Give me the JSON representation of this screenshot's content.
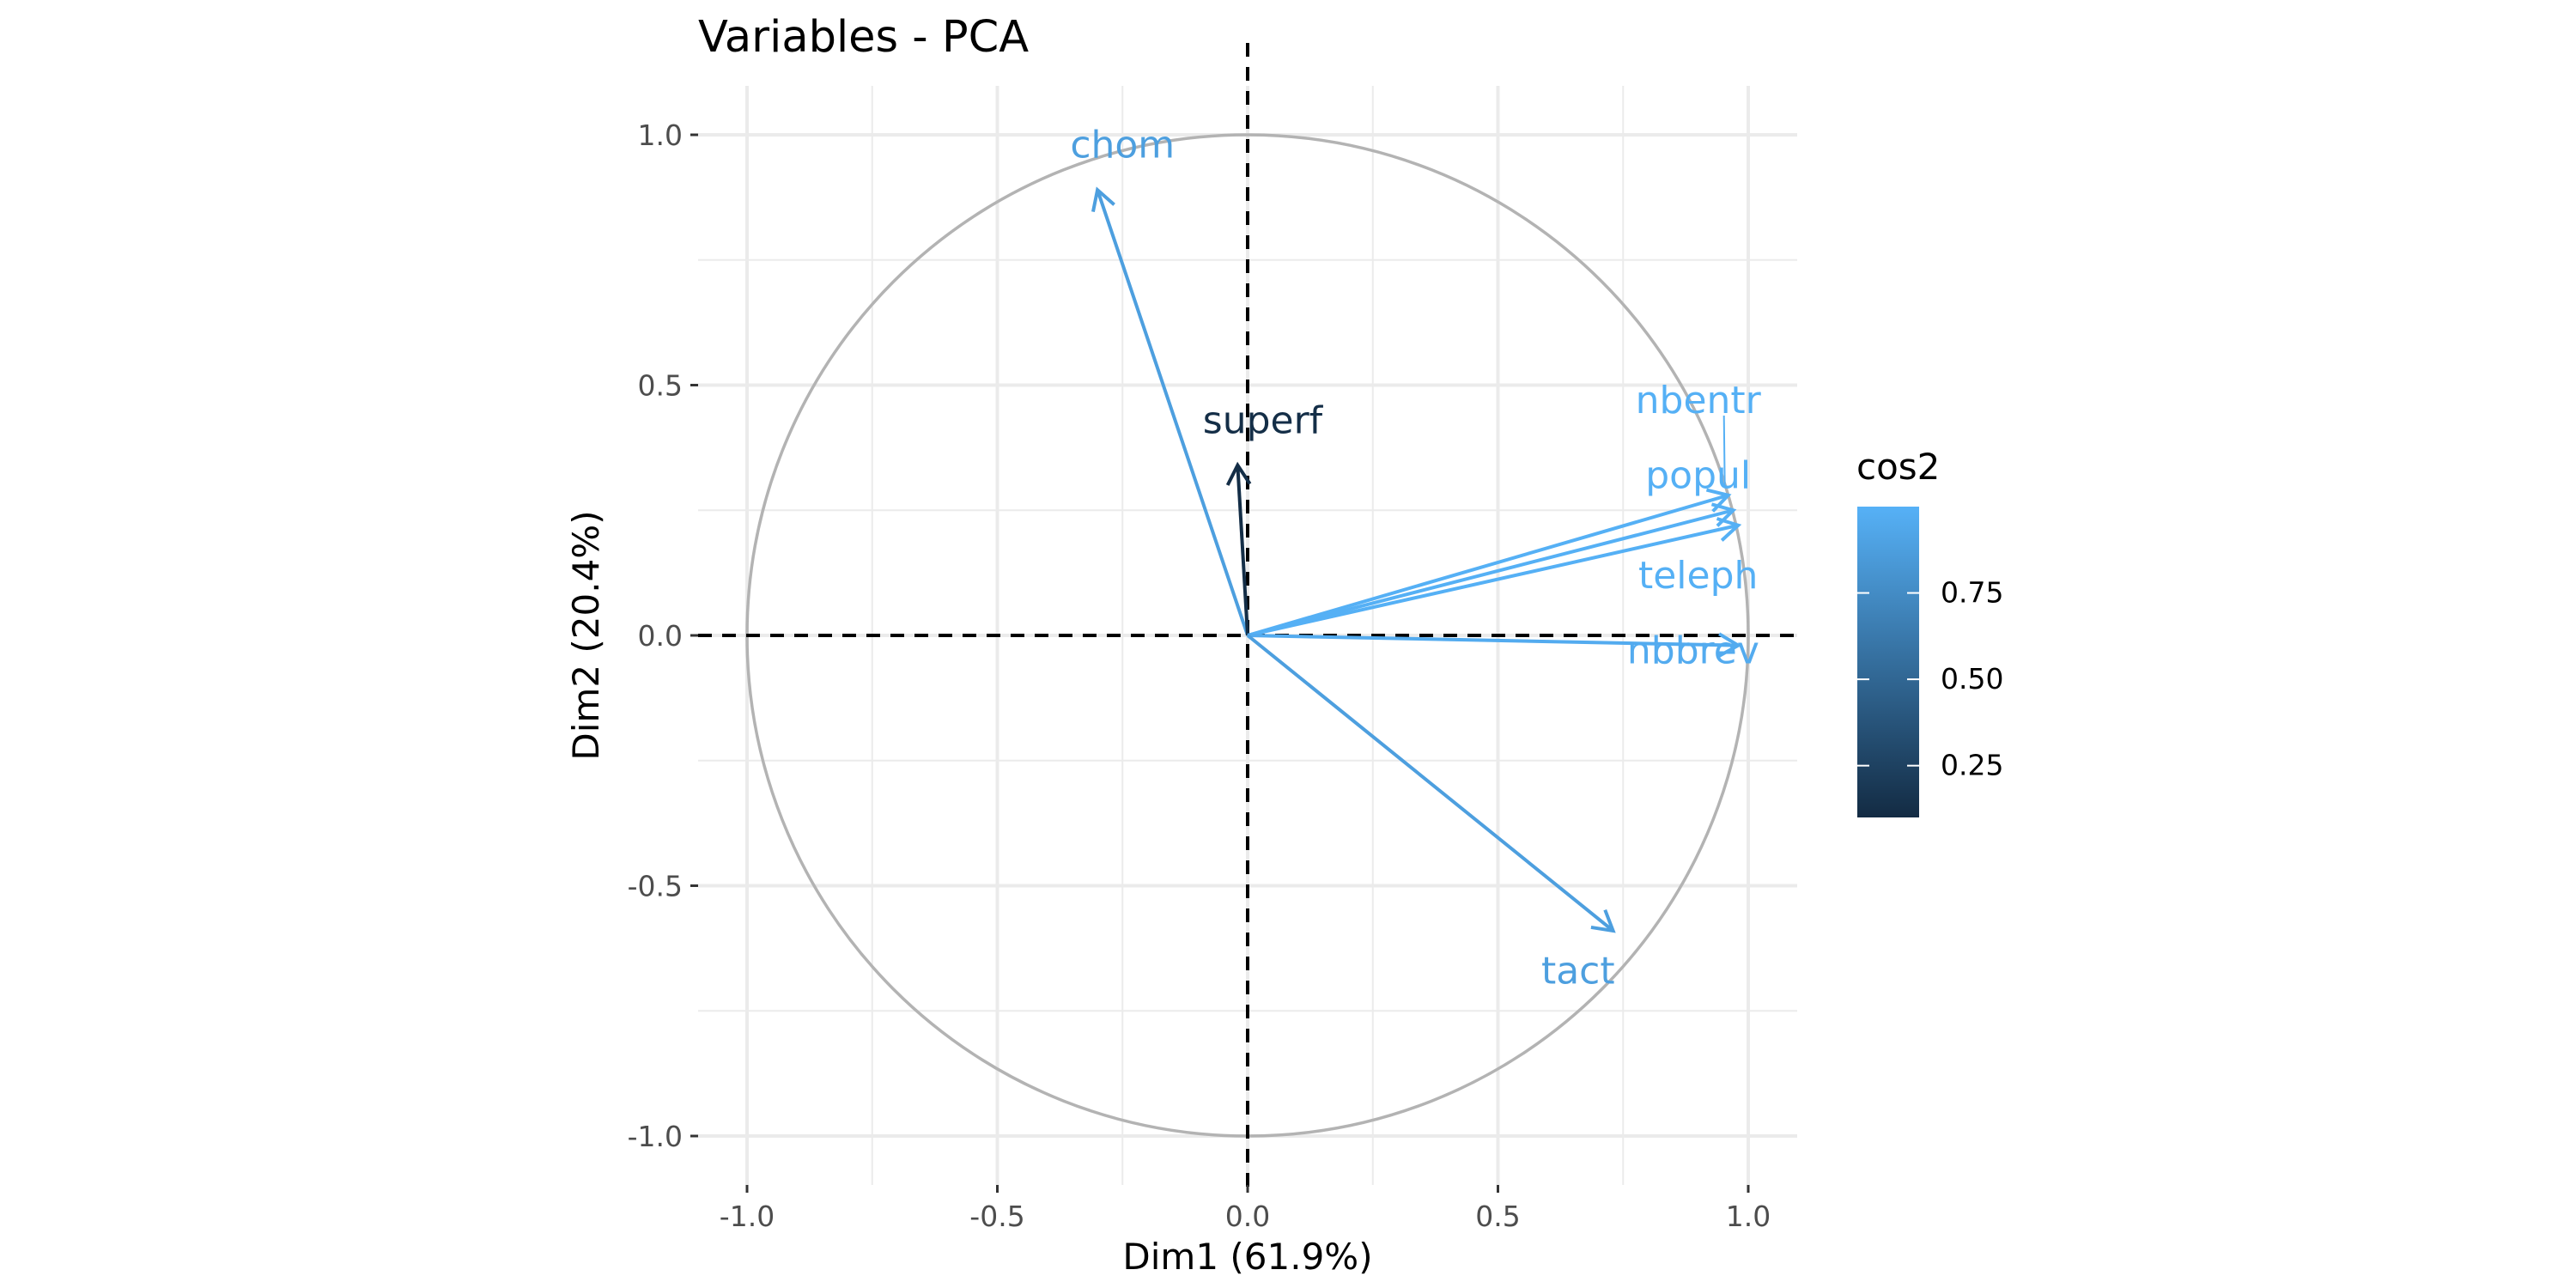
{
  "chart_data": {
    "type": "scatter",
    "subtype": "pca-variable-correlation-circle",
    "title": "Variables - PCA",
    "xlabel": "Dim1 (61.9%)",
    "ylabel": "Dim2 (20.4%)",
    "xlim": [
      -1.0,
      1.0
    ],
    "ylim": [
      -1.0,
      1.0
    ],
    "xticks": [
      -1.0,
      -0.5,
      0.0,
      0.5,
      1.0
    ],
    "xtick_labels": [
      "-1.0",
      "-0.5",
      "0.0",
      "0.5",
      "1.0"
    ],
    "yticks": [
      -1.0,
      -0.5,
      0.0,
      0.5,
      1.0
    ],
    "ytick_labels": [
      "-1.0",
      "-0.5",
      "0.0",
      "0.5",
      "1.0"
    ],
    "grid": true,
    "unit_circle": true,
    "reference_lines": {
      "x": 0,
      "y": 0,
      "style": "dashed"
    },
    "variables": [
      {
        "name": "chom",
        "x": -0.3,
        "y": 0.89,
        "cos2": 0.88
      },
      {
        "name": "superf",
        "x": -0.02,
        "y": 0.34,
        "cos2": 0.12
      },
      {
        "name": "nbentr",
        "x": 0.96,
        "y": 0.28,
        "cos2": 0.99
      },
      {
        "name": "popul",
        "x": 0.97,
        "y": 0.25,
        "cos2": 0.99
      },
      {
        "name": "teleph",
        "x": 0.98,
        "y": 0.22,
        "cos2": 0.99
      },
      {
        "name": "nbbrev",
        "x": 0.98,
        "y": -0.02,
        "cos2": 0.96
      },
      {
        "name": "tact",
        "x": 0.73,
        "y": -0.59,
        "cos2": 0.88
      }
    ],
    "legend": {
      "title": "cos2",
      "position": "right",
      "range": [
        0.1,
        1.0
      ],
      "ticks": [
        0.25,
        0.5,
        0.75
      ],
      "tick_labels": [
        "0.25",
        "0.50",
        "0.75"
      ],
      "low_color": "#132B43",
      "high_color": "#56B1F7"
    }
  }
}
